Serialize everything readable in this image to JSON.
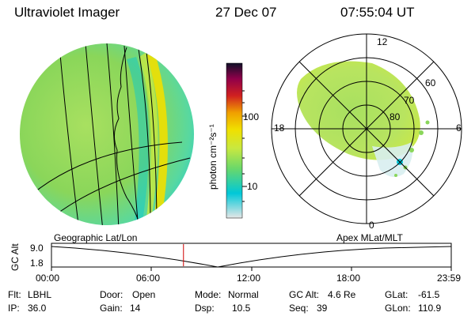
{
  "header": {
    "instrument": "Ultraviolet Imager",
    "date": "27 Dec 07",
    "time": "07:55:04 UT"
  },
  "left_image": {
    "caption": "Geographic Lat/Lon"
  },
  "right_image": {
    "caption": "Apex MLat/MLT",
    "mlt_labels": {
      "top": "12",
      "left": "18",
      "right": "6",
      "bottom": "0"
    },
    "lat_labels": [
      "60",
      "70",
      "80"
    ]
  },
  "colorbar": {
    "unit_label": "photon cm⁻²s⁻¹",
    "ticks": [
      "100",
      "10"
    ],
    "colors": [
      "#e6e6e6",
      "#00c8d8",
      "#a8e060",
      "#f0e000",
      "#f0a000",
      "#d02020",
      "#90004a",
      "#101028"
    ]
  },
  "altitude_panel": {
    "ylabel": "GC Alt",
    "yticks": [
      "9.0",
      "1.8"
    ],
    "xticks": [
      "00:00",
      "06:00",
      "12:00",
      "18:00",
      "23:59"
    ],
    "current_time_hours": 7.92
  },
  "footer": {
    "flt_label": "Flt:",
    "flt_value": "LBHL",
    "ip_label": "IP:",
    "ip_value": "36.0",
    "door_label": "Door:",
    "door_value": "Open",
    "gain_label": "Gain:",
    "gain_value": "14",
    "mode_label": "Mode:",
    "mode_value": "Normal",
    "dsp_label": "Dsp:",
    "dsp_value": "10.5",
    "gcalt_label": "GC Alt:",
    "gcalt_value": "4.6 Re",
    "seq_label": "Seq:",
    "seq_value": "39",
    "glat_label": "GLat:",
    "glat_value": "-61.5",
    "glon_label": "GLon:",
    "glon_value": "110.9"
  }
}
